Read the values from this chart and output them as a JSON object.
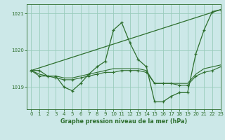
{
  "title": "Graphe pression niveau de la mer (hPa)",
  "bg_color": "#cce8e8",
  "grid_color": "#99ccbb",
  "line_color": "#2d6e2d",
  "xlim": [
    -0.5,
    23
  ],
  "ylim": [
    1018.4,
    1021.25
  ],
  "yticks": [
    1019,
    1020,
    1021
  ],
  "xticks": [
    0,
    1,
    2,
    3,
    4,
    5,
    6,
    7,
    8,
    9,
    10,
    11,
    12,
    13,
    14,
    15,
    16,
    17,
    18,
    19,
    20,
    21,
    22,
    23
  ],
  "series1_x": [
    0,
    1,
    2,
    3,
    4,
    5,
    6,
    7,
    8,
    9,
    10,
    11,
    12,
    13,
    14,
    15,
    16,
    17,
    18,
    19,
    20,
    21,
    22,
    23
  ],
  "series1_y": [
    1019.45,
    1019.45,
    1019.3,
    1019.3,
    1019.0,
    1018.9,
    1019.1,
    1019.35,
    1019.55,
    1019.7,
    1020.55,
    1020.75,
    1020.2,
    1019.75,
    1019.55,
    1018.6,
    1018.6,
    1018.75,
    1018.85,
    1018.85,
    1019.9,
    1020.55,
    1021.05,
    1021.1
  ],
  "series2_x": [
    0,
    23
  ],
  "series2_y": [
    1019.45,
    1021.1
  ],
  "series3_x": [
    0,
    1,
    2,
    3,
    4,
    5,
    6,
    7,
    8,
    9,
    10,
    11,
    12,
    13,
    14,
    15,
    16,
    17,
    18,
    19,
    20,
    21,
    22,
    23
  ],
  "series3_y": [
    1019.45,
    1019.35,
    1019.3,
    1019.3,
    1019.25,
    1019.25,
    1019.3,
    1019.35,
    1019.4,
    1019.45,
    1019.5,
    1019.5,
    1019.5,
    1019.5,
    1019.45,
    1019.1,
    1019.1,
    1019.1,
    1019.1,
    1019.1,
    1019.35,
    1019.5,
    1019.55,
    1019.6
  ],
  "series4_x": [
    0,
    1,
    2,
    3,
    4,
    5,
    6,
    7,
    8,
    9,
    10,
    11,
    12,
    13,
    14,
    15,
    16,
    17,
    18,
    19,
    20,
    21,
    22,
    23
  ],
  "series4_y": [
    1019.45,
    1019.3,
    1019.3,
    1019.25,
    1019.2,
    1019.2,
    1019.25,
    1019.3,
    1019.35,
    1019.4,
    1019.4,
    1019.45,
    1019.45,
    1019.45,
    1019.4,
    1019.1,
    1019.1,
    1019.1,
    1019.05,
    1019.05,
    1019.3,
    1019.4,
    1019.45,
    1019.55
  ]
}
